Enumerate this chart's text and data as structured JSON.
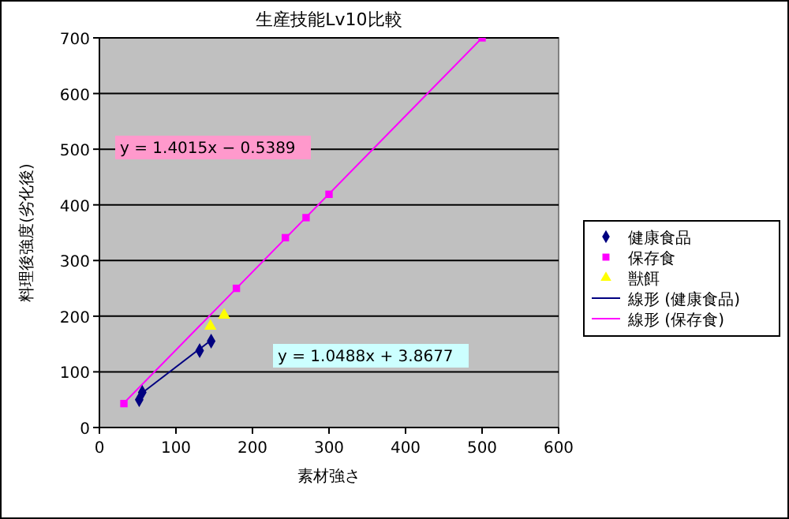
{
  "chart_data": {
    "type": "scatter",
    "title": "生産技能Lv10比較",
    "xlabel": "素材強さ",
    "ylabel": "料理後強度(劣化後)",
    "xlim": [
      0,
      600
    ],
    "xticks": [
      0,
      100,
      200,
      300,
      400,
      500,
      600
    ],
    "ylim": [
      0,
      700
    ],
    "yticks": [
      0,
      100,
      200,
      300,
      400,
      500,
      600,
      700
    ],
    "grid": "y",
    "legend": "right",
    "series": [
      {
        "name": "健康食品",
        "color": "#000080",
        "marker": "diamond",
        "x": [
          52,
          56,
          131,
          146
        ],
        "values": [
          50,
          63,
          138,
          155
        ]
      },
      {
        "name": "保存食",
        "color": "#ff00ff",
        "marker": "square",
        "x": [
          32,
          179,
          243,
          270,
          300,
          500
        ],
        "values": [
          43,
          250,
          341,
          377,
          419,
          700
        ]
      },
      {
        "name": "獣餌",
        "color": "#ffff00",
        "marker": "triangle",
        "x": [
          145,
          163
        ],
        "values": [
          182,
          202
        ]
      },
      {
        "name": "線形 (健康食品)",
        "type": "line",
        "color": "#000080",
        "marker": "none",
        "x": [
          52,
          146
        ],
        "values": [
          58,
          157
        ]
      },
      {
        "name": "線形 (保存食)",
        "type": "line",
        "color": "#ff00ff",
        "marker": "none",
        "x": [
          32,
          500
        ],
        "values": [
          44,
          700
        ]
      }
    ],
    "annotations": [
      "y = 1.4015x − 0.5389",
      "y = 1.0488x + 3.8677"
    ]
  }
}
